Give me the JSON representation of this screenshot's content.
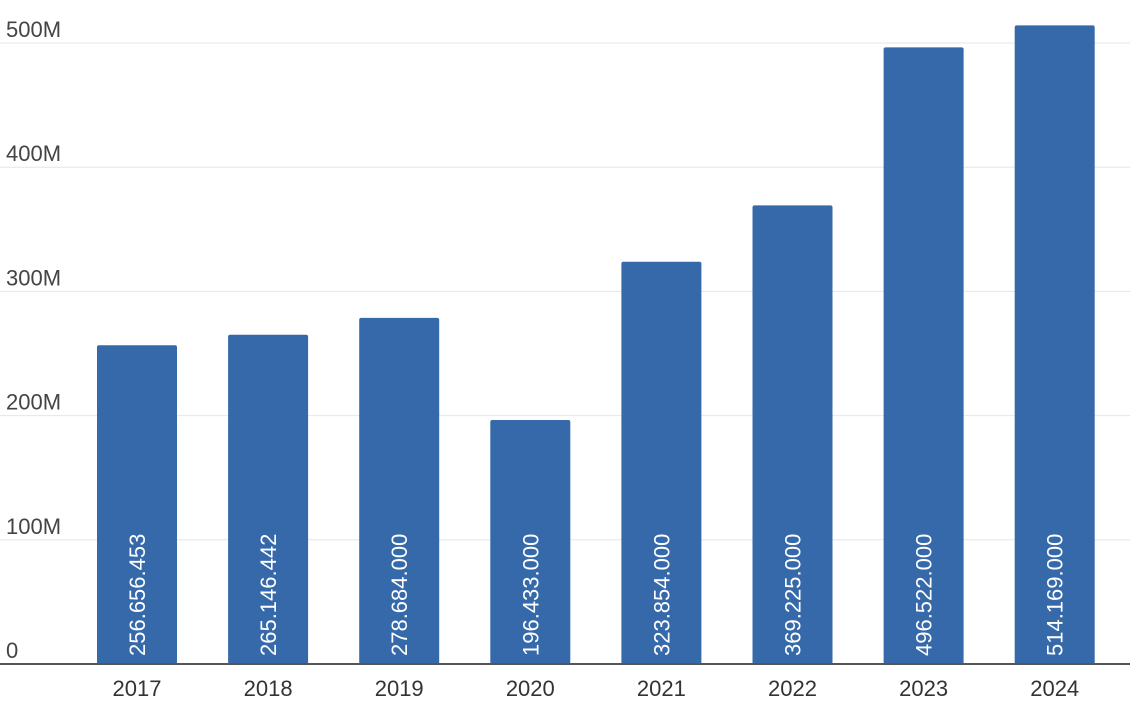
{
  "chart_data": {
    "type": "bar",
    "title": "",
    "xlabel": "",
    "ylabel": "",
    "categories": [
      "2017",
      "2018",
      "2019",
      "2020",
      "2021",
      "2022",
      "2023",
      "2024"
    ],
    "values": [
      256656453,
      265146442,
      278684000,
      196433000,
      323854000,
      369225000,
      496522000,
      514169000
    ],
    "data_labels": [
      "256.656.453",
      "265.146.442",
      "278.684.000",
      "196.433.000",
      "323.854.000",
      "369.225.000",
      "496.522.000",
      "514.169.000"
    ],
    "ylim": [
      0,
      500000000
    ],
    "y_ticks": [
      0,
      100000000,
      200000000,
      300000000,
      400000000,
      500000000
    ],
    "y_tick_labels": [
      "0",
      "100M",
      "200M",
      "300M",
      "400M",
      "500M"
    ],
    "grid": true,
    "legend": "none",
    "colors": {
      "bar": "#3569aa",
      "grid": "#e6e6e6",
      "axis": "#555555"
    }
  }
}
